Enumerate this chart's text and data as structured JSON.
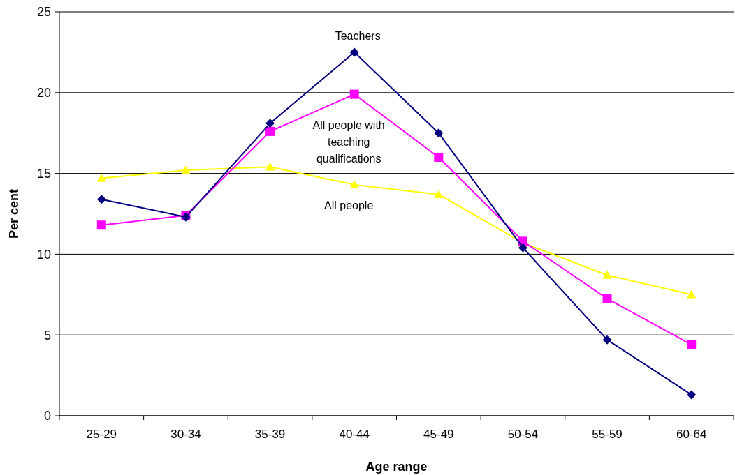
{
  "chart_data": {
    "type": "line",
    "xlabel": "Age range",
    "ylabel": "Per cent",
    "categories": [
      "25-29",
      "30-34",
      "35-39",
      "40-44",
      "45-49",
      "50-54",
      "55-59",
      "60-64"
    ],
    "ylim": [
      0,
      25
    ],
    "yticks": [
      0,
      5,
      10,
      15,
      20,
      25
    ],
    "grid": "y",
    "legend": false,
    "series": [
      {
        "name": "Teachers",
        "color": "#000080",
        "marker": "diamond",
        "values": [
          13.4,
          12.3,
          18.1,
          22.5,
          17.5,
          10.4,
          4.7,
          1.3
        ]
      },
      {
        "name": "All people with teaching qualifications",
        "color": "#ff00ff",
        "marker": "square",
        "values": [
          11.8,
          12.4,
          17.6,
          19.9,
          16.0,
          10.8,
          7.25,
          4.4
        ]
      },
      {
        "name": "All people",
        "color": "#ffff00",
        "marker": "triangle",
        "values": [
          14.7,
          15.2,
          15.4,
          14.3,
          13.7,
          10.7,
          8.7,
          7.5
        ]
      }
    ]
  }
}
